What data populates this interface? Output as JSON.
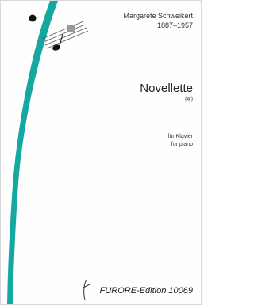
{
  "header": {
    "composer": "Margarete Schweikert",
    "dates": "1887–1957"
  },
  "title": "Novellette",
  "duration": "(4')",
  "instrumentation": [
    "für Klavier",
    "for piano"
  ],
  "publisher": "FURORE-Edition 10069"
}
